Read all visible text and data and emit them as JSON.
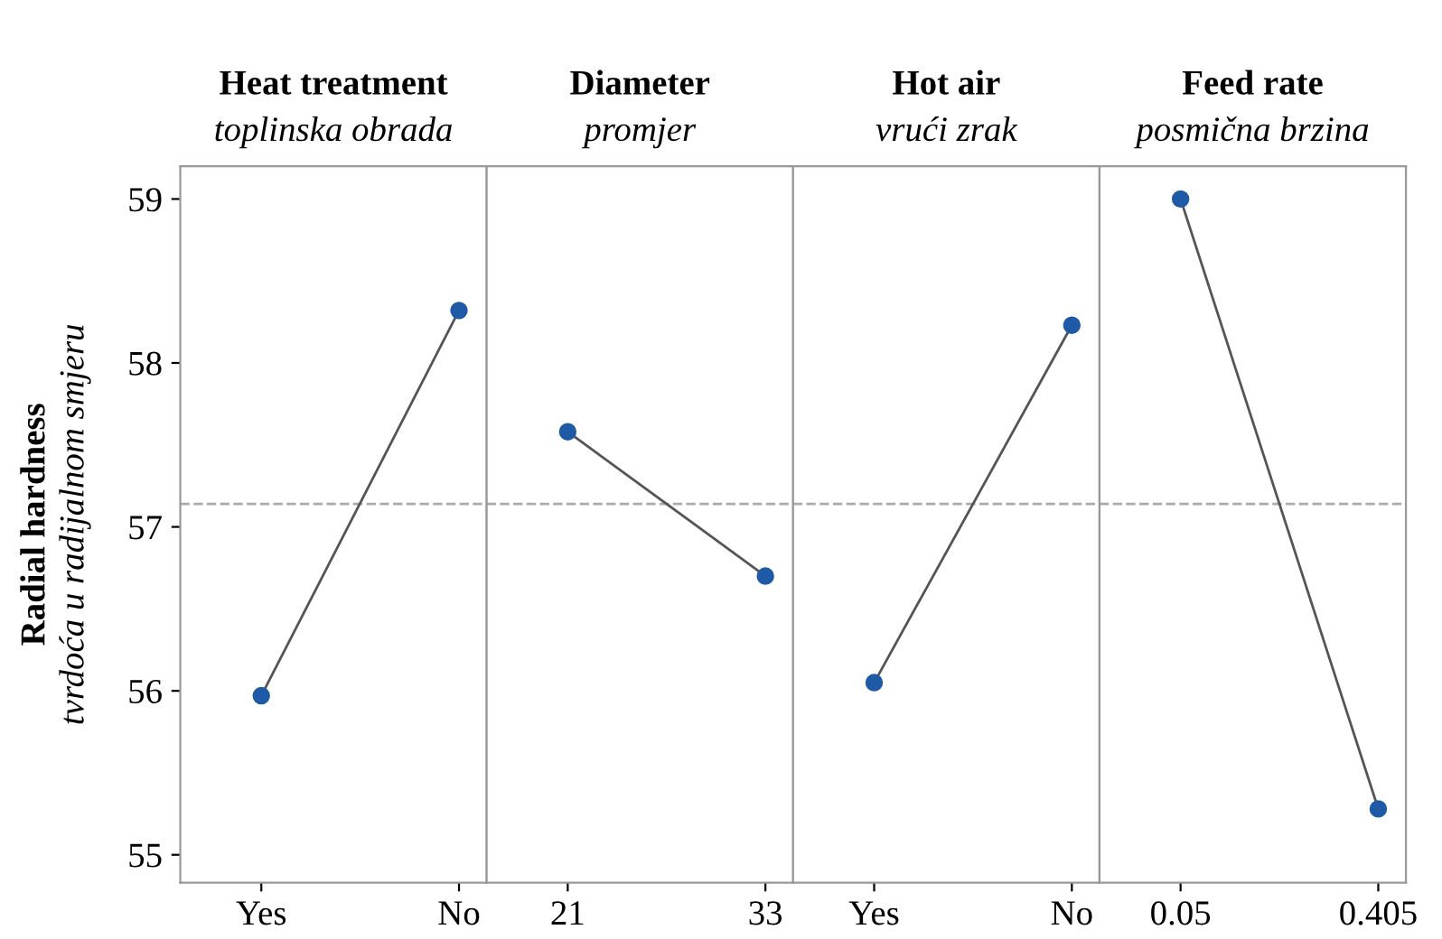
{
  "chart_data": [
    {
      "type": "line",
      "title": "Heat treatment",
      "subtitle": "toplinska obrada",
      "ylabel": "Radial hardness\ntvrdoća u radijalnom smjeru",
      "categories": [
        "Yes",
        "No"
      ],
      "series": [
        {
          "color": "#1f5aa6",
          "values": [
            55.97,
            58.32
          ]
        }
      ],
      "ylim": [
        54.83,
        59.2
      ],
      "yticks": [
        55,
        56,
        57,
        58,
        59
      ],
      "marker": "circle",
      "line_style": "solid",
      "grid": false,
      "ref_lines": [
        {
          "axis": "y",
          "value": 57.14,
          "color": "#aaaaaa",
          "line_style": "dashed"
        }
      ]
    },
    {
      "type": "line",
      "title": "Diameter",
      "subtitle": "promjer",
      "categories": [
        "21",
        "33"
      ],
      "series": [
        {
          "color": "#1f5aa6",
          "values": [
            57.58,
            56.7
          ]
        }
      ],
      "ylim": [
        54.83,
        59.2
      ],
      "tick_labels": "x",
      "marker": "circle",
      "line_style": "solid",
      "grid": false,
      "ref_lines": [
        {
          "axis": "y",
          "value": 57.14,
          "color": "#aaaaaa",
          "line_style": "dashed"
        }
      ]
    },
    {
      "type": "line",
      "title": "Hot air",
      "subtitle": "vrući zrak",
      "categories": [
        "Yes",
        "No"
      ],
      "series": [
        {
          "color": "#1f5aa6",
          "values": [
            56.05,
            58.23
          ]
        }
      ],
      "ylim": [
        54.83,
        59.2
      ],
      "tick_labels": "x",
      "marker": "circle",
      "line_style": "solid",
      "grid": false,
      "ref_lines": [
        {
          "axis": "y",
          "value": 57.14,
          "color": "#aaaaaa",
          "line_style": "dashed"
        }
      ]
    },
    {
      "type": "line",
      "title": "Feed rate",
      "subtitle": "posmična brzina",
      "categories": [
        "0.05",
        "0.405"
      ],
      "series": [
        {
          "color": "#1f5aa6",
          "values": [
            59.0,
            55.28
          ]
        }
      ],
      "ylim": [
        54.83,
        59.2
      ],
      "tick_labels": "x",
      "marker": "circle",
      "line_style": "solid",
      "grid": false,
      "ref_lines": [
        {
          "axis": "y",
          "value": 57.14,
          "color": "#aaaaaa",
          "line_style": "dashed"
        }
      ]
    }
  ]
}
